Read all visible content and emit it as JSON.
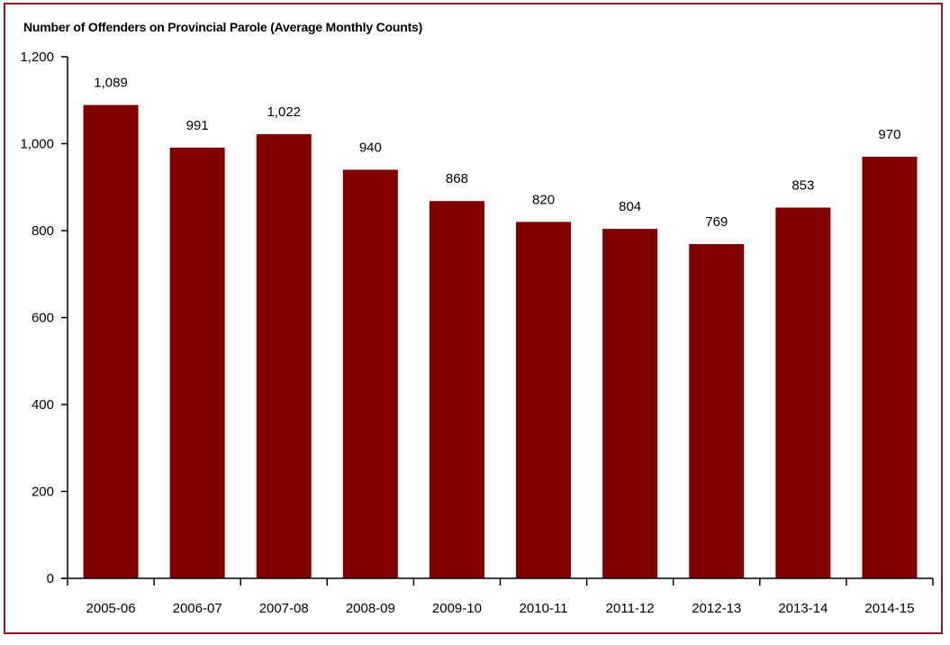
{
  "chart_data": {
    "type": "bar",
    "title": "Number of Offenders on Provincial Parole (Average Monthly Counts)",
    "xlabel": "",
    "ylabel": "",
    "categories": [
      "2005-06",
      "2006-07",
      "2007-08",
      "2008-09",
      "2009-10",
      "2010-11",
      "2011-12",
      "2012-13",
      "2013-14",
      "2014-15"
    ],
    "values": [
      1089,
      991,
      1022,
      940,
      868,
      820,
      804,
      769,
      853,
      970
    ],
    "data_labels": [
      "1,089",
      "991",
      "1,022",
      "940",
      "868",
      "820",
      "804",
      "769",
      "853",
      "970"
    ],
    "ylim": [
      0,
      1200
    ],
    "yticks": [
      0,
      200,
      400,
      600,
      800,
      1000,
      1200
    ],
    "ytick_labels": [
      "0",
      "200",
      "400",
      "600",
      "800",
      "1,000",
      "1,200"
    ],
    "grid": false,
    "legend": "none",
    "bar_color": "#800000",
    "frame_color": "#8e1b1f"
  }
}
